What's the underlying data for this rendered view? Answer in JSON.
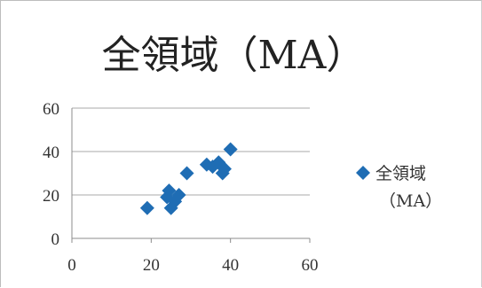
{
  "chart_data": {
    "type": "scatter",
    "title": "全領域（MA）",
    "xlabel": "",
    "ylabel": "",
    "xlim": [
      0,
      60
    ],
    "ylim": [
      0,
      60
    ],
    "x_ticks": [
      0,
      20,
      40,
      60
    ],
    "y_ticks": [
      0,
      20,
      40,
      60
    ],
    "grid": "horizontal",
    "legend_position": "right",
    "color": "#1f6db4",
    "series": [
      {
        "name": "全領域（MA）",
        "legend_lines": [
          "全領域",
          "（MA）"
        ],
        "points": [
          {
            "x": 19,
            "y": 14
          },
          {
            "x": 24,
            "y": 19
          },
          {
            "x": 24.5,
            "y": 22
          },
          {
            "x": 25,
            "y": 14
          },
          {
            "x": 26,
            "y": 17
          },
          {
            "x": 27,
            "y": 20
          },
          {
            "x": 29,
            "y": 30
          },
          {
            "x": 34,
            "y": 34
          },
          {
            "x": 35.5,
            "y": 33
          },
          {
            "x": 37,
            "y": 35
          },
          {
            "x": 38,
            "y": 30
          },
          {
            "x": 38.5,
            "y": 32
          },
          {
            "x": 40,
            "y": 41
          }
        ]
      }
    ]
  }
}
